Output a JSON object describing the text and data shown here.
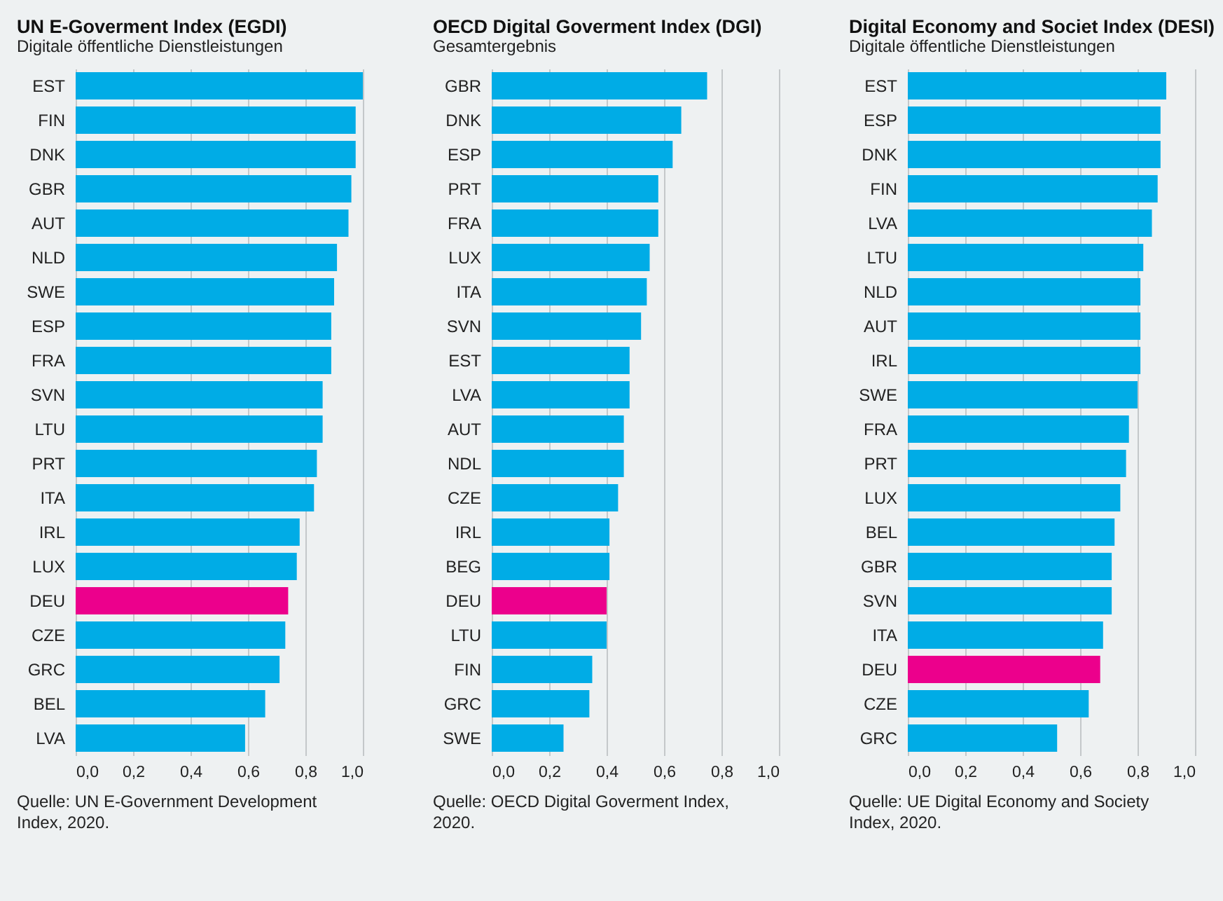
{
  "chart_data": [
    {
      "type": "bar",
      "orientation": "horizontal",
      "title": "UN E-Goverment Index (EGDI)",
      "subtitle": "Digitale öffentliche Dienstleistungen",
      "categories": [
        "EST",
        "FIN",
        "DNK",
        "GBR",
        "AUT",
        "NLD",
        "SWE",
        "ESP",
        "FRA",
        "SVN",
        "LTU",
        "PRT",
        "ITA",
        "IRL",
        "LUX",
        "DEU",
        "CZE",
        "GRC",
        "BEL",
        "LVA"
      ],
      "values": [
        1.0,
        0.975,
        0.975,
        0.96,
        0.95,
        0.91,
        0.9,
        0.89,
        0.89,
        0.86,
        0.86,
        0.84,
        0.83,
        0.78,
        0.77,
        0.74,
        0.73,
        0.71,
        0.66,
        0.59
      ],
      "colors": [
        "#00ace6",
        "#00ace6",
        "#00ace6",
        "#00ace6",
        "#00ace6",
        "#00ace6",
        "#00ace6",
        "#00ace6",
        "#00ace6",
        "#00ace6",
        "#00ace6",
        "#00ace6",
        "#00ace6",
        "#00ace6",
        "#00ace6",
        "#ec008c",
        "#00ace6",
        "#00ace6",
        "#00ace6",
        "#00ace6"
      ],
      "xlim": [
        0,
        1.0
      ],
      "xticks": [
        {
          "value": 0,
          "label": "0,0"
        },
        {
          "value": 0.2,
          "label": "0,2"
        },
        {
          "value": 0.4,
          "label": "0,4"
        },
        {
          "value": 0.6,
          "label": "0,6"
        },
        {
          "value": 0.8,
          "label": "0,8"
        },
        {
          "value": 1.0,
          "label": "1,0"
        }
      ],
      "grid": "x",
      "annotations": [
        "Quelle: UN E-Government Development Index, 2020."
      ]
    },
    {
      "type": "bar",
      "orientation": "horizontal",
      "title": "OECD Digital Goverment Index (DGI)",
      "subtitle": "Gesamtergebnis",
      "categories": [
        "GBR",
        "DNK",
        "ESP",
        "PRT",
        "FRA",
        "LUX",
        "ITA",
        "SVN",
        "EST",
        "LVA",
        "AUT",
        "NDL",
        "CZE",
        "IRL",
        "BEG",
        "DEU",
        "LTU",
        "FIN",
        "GRC",
        "SWE"
      ],
      "values": [
        0.75,
        0.66,
        0.63,
        0.58,
        0.58,
        0.55,
        0.54,
        0.52,
        0.48,
        0.48,
        0.46,
        0.46,
        0.44,
        0.41,
        0.41,
        0.4,
        0.4,
        0.35,
        0.34,
        0.25
      ],
      "colors": [
        "#00ace6",
        "#00ace6",
        "#00ace6",
        "#00ace6",
        "#00ace6",
        "#00ace6",
        "#00ace6",
        "#00ace6",
        "#00ace6",
        "#00ace6",
        "#00ace6",
        "#00ace6",
        "#00ace6",
        "#00ace6",
        "#00ace6",
        "#ec008c",
        "#00ace6",
        "#00ace6",
        "#00ace6",
        "#00ace6"
      ],
      "xlim": [
        0,
        1.0
      ],
      "xticks": [
        {
          "value": 0,
          "label": "0,0"
        },
        {
          "value": 0.2,
          "label": "0,2"
        },
        {
          "value": 0.4,
          "label": "0,4"
        },
        {
          "value": 0.6,
          "label": "0,6"
        },
        {
          "value": 0.8,
          "label": "0,8"
        },
        {
          "value": 1.0,
          "label": "1,0"
        }
      ],
      "grid": "x",
      "annotations": [
        "Quelle: OECD Digital Goverment Index, 2020."
      ]
    },
    {
      "type": "bar",
      "orientation": "horizontal",
      "title": "Digital Economy and Societ Index (DESI)",
      "subtitle": "Digitale öffentliche Dienstleistungen",
      "categories": [
        "EST",
        "ESP",
        "DNK",
        "FIN",
        "LVA",
        "LTU",
        "NLD",
        "AUT",
        "IRL",
        "SWE",
        "FRA",
        "PRT",
        "LUX",
        "BEL",
        "GBR",
        "SVN",
        "ITA",
        "DEU",
        "CZE",
        "GRC"
      ],
      "values": [
        0.9,
        0.88,
        0.88,
        0.87,
        0.85,
        0.82,
        0.81,
        0.81,
        0.81,
        0.8,
        0.77,
        0.76,
        0.74,
        0.72,
        0.71,
        0.71,
        0.68,
        0.67,
        0.63,
        0.52
      ],
      "colors": [
        "#00ace6",
        "#00ace6",
        "#00ace6",
        "#00ace6",
        "#00ace6",
        "#00ace6",
        "#00ace6",
        "#00ace6",
        "#00ace6",
        "#00ace6",
        "#00ace6",
        "#00ace6",
        "#00ace6",
        "#00ace6",
        "#00ace6",
        "#00ace6",
        "#00ace6",
        "#ec008c",
        "#00ace6",
        "#00ace6"
      ],
      "xlim": [
        0,
        1.0
      ],
      "xticks": [
        {
          "value": 0,
          "label": "0,0"
        },
        {
          "value": 0.2,
          "label": "0,2"
        },
        {
          "value": 0.4,
          "label": "0,4"
        },
        {
          "value": 0.6,
          "label": "0,6"
        },
        {
          "value": 0.8,
          "label": "0,8"
        },
        {
          "value": 1.0,
          "label": "1,0"
        }
      ],
      "grid": "x",
      "annotations": [
        "Quelle: UE Digital Economy and Society Index, 2020."
      ]
    }
  ]
}
